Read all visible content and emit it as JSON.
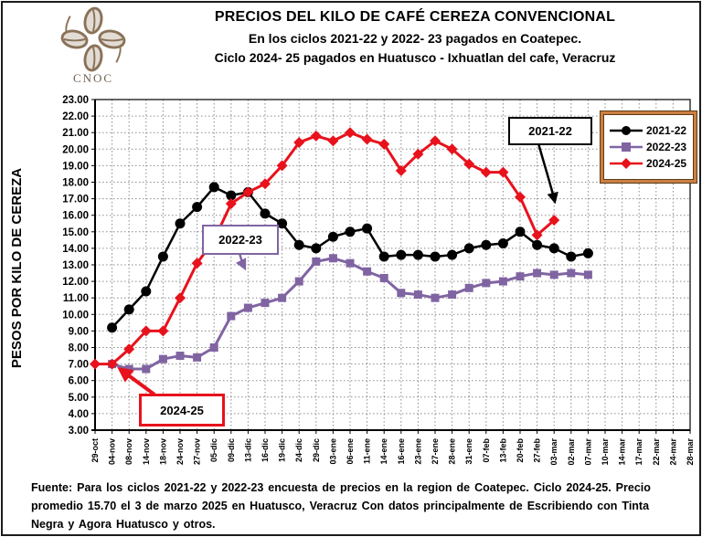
{
  "logo": {
    "text": "CNOC",
    "color": "#8a7258"
  },
  "header": {
    "title1": "PRECIOS DEL KILO DE CAFÉ CEREZA CONVENCIONAL",
    "title2": "En los ciclos 2021-22 y 2022- 23 pagados en Coatepec.",
    "title3": "Ciclo 2024- 25 pagados en Huatusco - Ixhuatlan del cafe, Veracruz"
  },
  "chart_data": {
    "type": "line",
    "ylabel": "PESOS POR KILO DE CEREZA",
    "ylim": [
      3,
      23
    ],
    "ytick_step": 1,
    "ytick_format_decimals": 2,
    "grid": "dotted-both",
    "legend_position": "top-right",
    "categories": [
      "29-oct",
      "04-nov",
      "08-nov",
      "14-nov",
      "18-nov",
      "24-nov",
      "27-nov",
      "05-dic",
      "09-dic",
      "13-dic",
      "16-dic",
      "19-dic",
      "24-dic",
      "29-dic",
      "03-ene",
      "06-ene",
      "11-ene",
      "14-ene",
      "16-ene",
      "23-ene",
      "27-ene",
      "28-ene",
      "31-ene",
      "07-feb",
      "13-feb",
      "20-feb",
      "27-feb",
      "03-mar",
      "02-mar",
      "07-mar",
      "10-mar",
      "14-mar",
      "17-mar",
      "22-mar",
      "24-mar",
      "28-mar"
    ],
    "series": [
      {
        "name": "2021-22",
        "color": "#000000",
        "marker": "circle",
        "start_index": 1,
        "values": [
          9.2,
          10.3,
          11.4,
          13.5,
          15.5,
          16.5,
          17.7,
          17.2,
          17.4,
          16.1,
          15.5,
          14.2,
          14.0,
          14.7,
          15.0,
          15.2,
          13.5,
          13.6,
          13.6,
          13.5,
          13.6,
          14.0,
          14.2,
          14.3,
          15.0,
          14.2,
          14.0,
          13.5,
          13.7
        ]
      },
      {
        "name": "2022-23",
        "color": "#8064A2",
        "marker": "square",
        "start_index": 1,
        "values": [
          7.0,
          6.7,
          6.7,
          7.3,
          7.5,
          7.4,
          8.0,
          9.9,
          10.4,
          10.7,
          11.0,
          12.0,
          13.2,
          13.4,
          13.1,
          12.6,
          12.2,
          11.3,
          11.2,
          11.0,
          11.2,
          11.6,
          11.9,
          12.0,
          12.3,
          12.5,
          12.4,
          12.5,
          12.4
        ]
      },
      {
        "name": "2024-25",
        "color": "#e8121c",
        "marker": "diamond",
        "start_index": 0,
        "values": [
          7.0,
          7.0,
          7.9,
          9.0,
          9.0,
          11.0,
          13.1,
          14.5,
          16.7,
          17.4,
          17.9,
          19.0,
          20.4,
          20.8,
          20.5,
          21.0,
          20.6,
          20.3,
          18.7,
          19.7,
          20.5,
          20.0,
          19.1,
          18.6,
          18.6,
          17.1,
          14.8,
          15.7
        ]
      }
    ],
    "annotations": [
      {
        "label": "2021-22",
        "color": "#000000"
      },
      {
        "label": "2022-23",
        "color": "#8064A2"
      },
      {
        "label": "2024-25",
        "color": "#e8121c"
      }
    ]
  },
  "footer": {
    "lines": [
      "Fuente: Para los ciclos 2021-22 y 2022-23 encuesta de precios en la region de Coatepec. Ciclo 2024-25. Precio",
      "promedio 15.70 el 3 de marzo 2025 en Huatusco, Veracruz Con datos principalmente  de Escribiendo  con Tinta",
      "Negra y Agora Huatusco y otros."
    ]
  }
}
